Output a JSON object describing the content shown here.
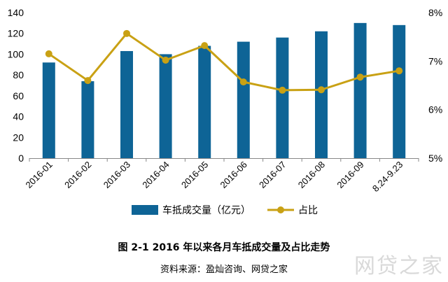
{
  "chart_data": {
    "type": "bar+line",
    "categories": [
      "2016-01",
      "2016-02",
      "2016-03",
      "2016-04",
      "2016-05",
      "2016-06",
      "2016-07",
      "2016-08",
      "2016-09",
      "8.24-9.23"
    ],
    "series": [
      {
        "name": "车抵成交量（亿元）",
        "type": "bar",
        "axis": "left",
        "values": [
          92,
          74,
          103,
          100,
          108,
          112,
          116,
          122,
          130,
          128
        ]
      },
      {
        "name": "占比",
        "type": "line",
        "axis": "right",
        "values": [
          7.15,
          6.6,
          7.57,
          7.02,
          7.32,
          6.57,
          6.4,
          6.41,
          6.67,
          6.8
        ]
      }
    ],
    "y_left": {
      "ylim": [
        0,
        140
      ],
      "ticks": [
        "0",
        "20",
        "40",
        "60",
        "80",
        "100",
        "120",
        "140"
      ]
    },
    "y_right": {
      "ylim": [
        5,
        8
      ],
      "ticks": [
        "5%",
        "6%",
        "7%",
        "8%"
      ]
    },
    "legend_position": "bottom",
    "grid": false
  },
  "colors": {
    "bar": "#0e6496",
    "line": "#c9a114"
  },
  "caption": {
    "title": "图 2-1  2016 年以来各月车抵成交量及占比走势",
    "source": "资料来源：盈灿咨询、网贷之家"
  },
  "watermark": "网贷之家"
}
